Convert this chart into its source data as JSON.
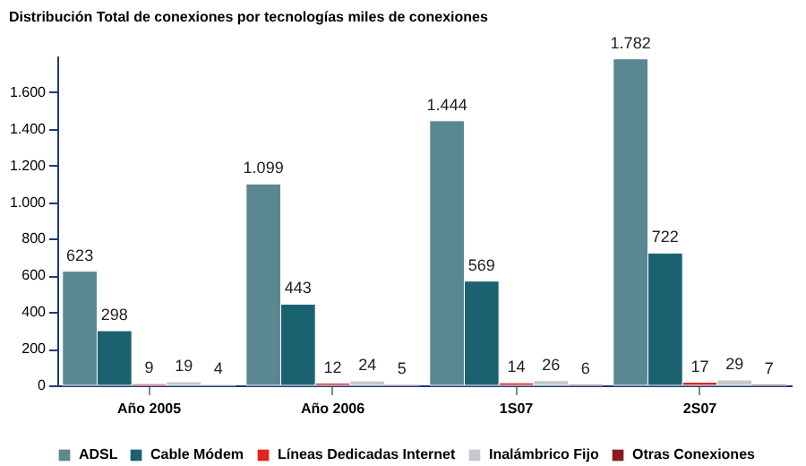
{
  "chart_data": {
    "type": "bar",
    "title": "Distribución Total de conexiones por tecnologías miles de conexiones",
    "categories": [
      "Año 2005",
      "Año 2006",
      "1S07",
      "2S07"
    ],
    "series": [
      {
        "name": "ADSL",
        "color": "#5b8790",
        "values": [
          623,
          1099,
          1444,
          1782
        ],
        "value_labels": [
          "623",
          "1.099",
          "1.444",
          "1.782"
        ]
      },
      {
        "name": "Cable Módem",
        "color": "#1b6270",
        "values": [
          298,
          443,
          569,
          722
        ],
        "value_labels": [
          "298",
          "443",
          "569",
          "722"
        ]
      },
      {
        "name": "Líneas Dedicadas Internet",
        "color": "#e8221c",
        "values": [
          9,
          12,
          14,
          17
        ],
        "value_labels": [
          "9",
          "12",
          "14",
          "17"
        ]
      },
      {
        "name": "Inalámbrico Fijo",
        "color": "#c4c8cc",
        "values": [
          19,
          24,
          26,
          29
        ],
        "value_labels": [
          "19",
          "24",
          "26",
          "29"
        ]
      },
      {
        "name": "Otras Conexiones",
        "color": "#8c1a1a",
        "values": [
          4,
          5,
          6,
          7
        ],
        "value_labels": [
          "4",
          "5",
          "6",
          "7"
        ]
      }
    ],
    "ylim": [
      0,
      1800
    ],
    "yticks": [
      0,
      200,
      400,
      600,
      800,
      {
        "value": 1000,
        "label": "1.000"
      },
      {
        "value": 1200,
        "label": "1.200"
      },
      {
        "value": 1400,
        "label": "1.400"
      },
      {
        "value": 1600,
        "label": "1.600"
      }
    ],
    "grid": false,
    "legend": "bottom"
  }
}
